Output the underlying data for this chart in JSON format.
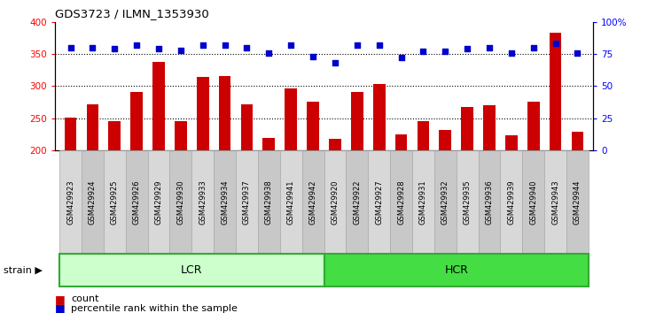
{
  "title": "GDS3723 / ILMN_1353930",
  "samples": [
    "GSM429923",
    "GSM429924",
    "GSM429925",
    "GSM429926",
    "GSM429929",
    "GSM429930",
    "GSM429933",
    "GSM429934",
    "GSM429937",
    "GSM429938",
    "GSM429941",
    "GSM429942",
    "GSM429920",
    "GSM429922",
    "GSM429927",
    "GSM429928",
    "GSM429931",
    "GSM429932",
    "GSM429935",
    "GSM429936",
    "GSM429939",
    "GSM429940",
    "GSM429943",
    "GSM429944"
  ],
  "bar_values": [
    251,
    272,
    245,
    291,
    338,
    245,
    314,
    316,
    272,
    219,
    297,
    275,
    218,
    291,
    303,
    225,
    245,
    231,
    268,
    270,
    223,
    275,
    383,
    229
  ],
  "percentile_values_pct": [
    80,
    80,
    79,
    82,
    79,
    78,
    82,
    82,
    80,
    76,
    82,
    73,
    68,
    82,
    82,
    72,
    77,
    77,
    79,
    80,
    76,
    80,
    83,
    76
  ],
  "lcr_count": 12,
  "hcr_count": 12,
  "bar_color": "#cc0000",
  "percentile_color": "#0000cc",
  "lcr_color": "#ccffcc",
  "hcr_color": "#44dd44",
  "tick_box_color": "#d0d0d0",
  "tick_box_edge_color": "#999999",
  "ylim_left": [
    200,
    400
  ],
  "ylim_right": [
    0,
    100
  ],
  "yticks_left": [
    200,
    250,
    300,
    350,
    400
  ],
  "yticks_right": [
    0,
    25,
    50,
    75,
    100
  ],
  "grid_values": [
    250,
    300,
    350
  ],
  "strain_label": "strain",
  "lcr_label": "LCR",
  "hcr_label": "HCR"
}
